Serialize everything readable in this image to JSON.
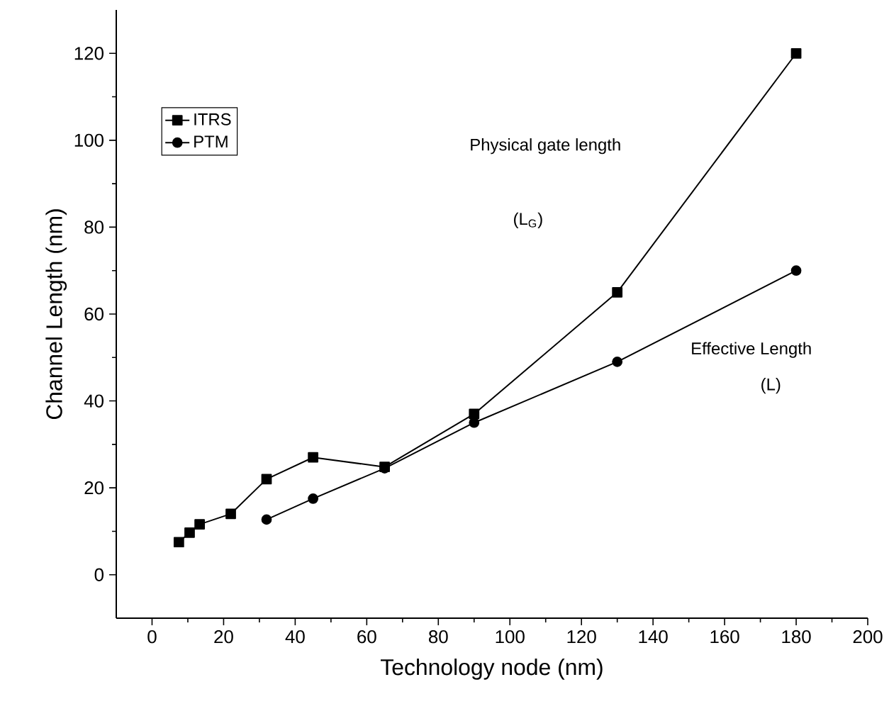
{
  "chart_data": {
    "type": "line",
    "xlabel": "Technology node (nm)",
    "ylabel": "Channel Length (nm)",
    "xlim": [
      -10,
      200
    ],
    "xticks": [
      0,
      20,
      40,
      60,
      80,
      100,
      120,
      140,
      160,
      180,
      200
    ],
    "ylim": [
      -10,
      130
    ],
    "yticks": [
      0,
      20,
      40,
      60,
      80,
      100,
      120
    ],
    "series": [
      {
        "name": "ITRS",
        "color": "#000000",
        "marker": "square",
        "x": [
          7.5,
          10.5,
          13.3,
          22,
          32,
          45,
          65,
          90,
          130,
          180
        ],
        "values": [
          7.5,
          9.7,
          11.6,
          14,
          22,
          27,
          24.8,
          37,
          65,
          120
        ]
      },
      {
        "name": "PTM",
        "color": "#000000",
        "marker": "circle",
        "x": [
          32,
          45,
          65,
          90,
          130,
          180
        ],
        "values": [
          12.7,
          17.5,
          24.5,
          35,
          49,
          70
        ]
      }
    ],
    "legend": "top left",
    "grid": false,
    "line_style": "solid",
    "annotations": [
      "Physical gate length",
      "(L$_{G}$)",
      "Effective Length",
      "(L)"
    ]
  }
}
